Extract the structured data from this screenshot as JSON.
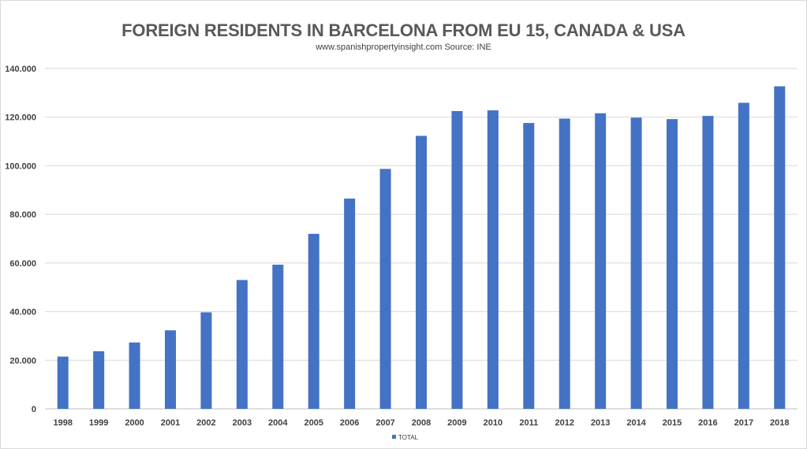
{
  "chart_data": {
    "type": "bar",
    "title": "FOREIGN RESIDENTS IN BARCELONA FROM EU 15, CANADA & USA",
    "subtitle": "www.spanishpropertyinsight.com Source: INE",
    "categories": [
      "1998",
      "1999",
      "2000",
      "2001",
      "2002",
      "2003",
      "2004",
      "2005",
      "2006",
      "2007",
      "2008",
      "2009",
      "2010",
      "2011",
      "2012",
      "2013",
      "2014",
      "2015",
      "2016",
      "2017",
      "2018"
    ],
    "series": [
      {
        "name": "TOTAL",
        "values": [
          21500,
          23700,
          27300,
          32300,
          39700,
          53000,
          59300,
          72000,
          86500,
          98700,
          112300,
          122500,
          122800,
          117600,
          119400,
          121600,
          119800,
          119200,
          120500,
          125900,
          132700
        ]
      }
    ],
    "ylim": [
      0,
      140000
    ],
    "yticks": [
      "0",
      "20.000",
      "40.000",
      "60.000",
      "80.000",
      "100.000",
      "120.000",
      "140.000"
    ],
    "grid": true,
    "legend": "bottom",
    "colors": {
      "bar": "#4472C4",
      "grid": "#d9d9d9",
      "text": "#404040",
      "title": "#595959"
    }
  }
}
